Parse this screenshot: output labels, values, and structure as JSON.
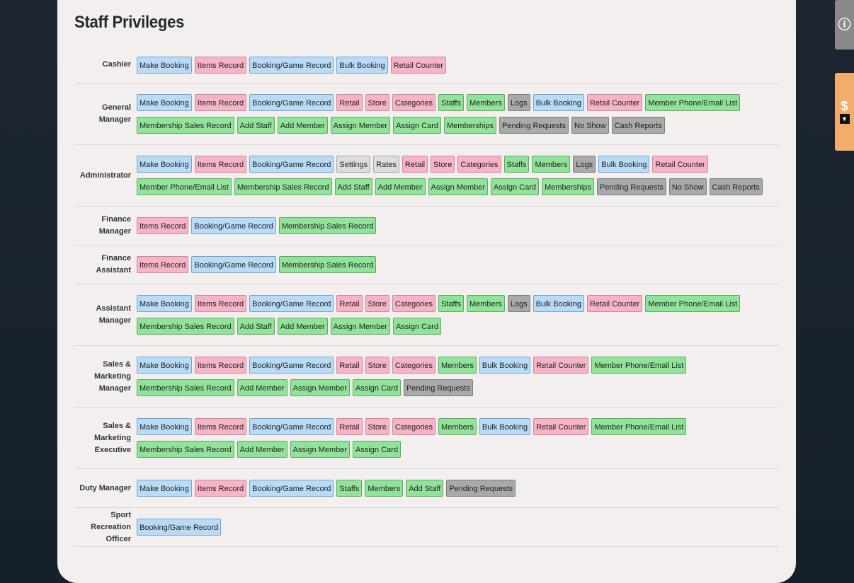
{
  "title": "Staff Privileges",
  "side": {
    "top_icon": "info-icon",
    "money_icon": "dollar-icon",
    "money_glyph": "$",
    "info_glyph": "ⓘ",
    "down_glyph": "▼"
  },
  "rows": [
    {
      "role": "Cashier",
      "perms": [
        {
          "label": "Make Booking",
          "color": "blue"
        },
        {
          "label": "Items Record",
          "color": "pink"
        },
        {
          "label": "Booking/Game Record",
          "color": "blue"
        },
        {
          "label": "Bulk Booking",
          "color": "blue"
        },
        {
          "label": "Retail Counter",
          "color": "pink"
        }
      ]
    },
    {
      "role": "General Manager",
      "perms": [
        {
          "label": "Make Booking",
          "color": "blue"
        },
        {
          "label": "Items Record",
          "color": "pink"
        },
        {
          "label": "Booking/Game Record",
          "color": "blue"
        },
        {
          "label": "Retail",
          "color": "pink"
        },
        {
          "label": "Store",
          "color": "pink"
        },
        {
          "label": "Categories",
          "color": "pink"
        },
        {
          "label": "Staffs",
          "color": "green"
        },
        {
          "label": "Members",
          "color": "green"
        },
        {
          "label": "Logs",
          "color": "gray"
        },
        {
          "label": "Bulk Booking",
          "color": "blue"
        },
        {
          "label": "Retail Counter",
          "color": "pink"
        },
        {
          "label": "Member Phone/Email List",
          "color": "green"
        },
        {
          "label": "Membership Sales Record",
          "color": "green"
        },
        {
          "label": "Add Staff",
          "color": "green"
        },
        {
          "label": "Add Member",
          "color": "green"
        },
        {
          "label": "Assign Member",
          "color": "green"
        },
        {
          "label": "Assign Card",
          "color": "green"
        },
        {
          "label": "Memberships",
          "color": "green"
        },
        {
          "label": "Pending Requests",
          "color": "gray"
        },
        {
          "label": "No Show",
          "color": "gray"
        },
        {
          "label": "Cash Reports",
          "color": "gray"
        }
      ]
    },
    {
      "role": "Administrator",
      "perms": [
        {
          "label": "Make Booking",
          "color": "blue"
        },
        {
          "label": "Items Record",
          "color": "pink"
        },
        {
          "label": "Booking/Game Record",
          "color": "blue"
        },
        {
          "label": "Settings",
          "color": "lgray"
        },
        {
          "label": "Rates",
          "color": "lgray"
        },
        {
          "label": "Retail",
          "color": "pink"
        },
        {
          "label": "Store",
          "color": "pink"
        },
        {
          "label": "Categories",
          "color": "pink"
        },
        {
          "label": "Staffs",
          "color": "green"
        },
        {
          "label": "Members",
          "color": "green"
        },
        {
          "label": "Logs",
          "color": "gray"
        },
        {
          "label": "Bulk Booking",
          "color": "blue"
        },
        {
          "label": "Retail Counter",
          "color": "pink"
        },
        {
          "label": "Member Phone/Email List",
          "color": "green"
        },
        {
          "label": "Membership Sales Record",
          "color": "green"
        },
        {
          "label": "Add Staff",
          "color": "green"
        },
        {
          "label": "Add Member",
          "color": "green"
        },
        {
          "label": "Assign Member",
          "color": "green"
        },
        {
          "label": "Assign Card",
          "color": "green"
        },
        {
          "label": "Memberships",
          "color": "green"
        },
        {
          "label": "Pending Requests",
          "color": "gray"
        },
        {
          "label": "No Show",
          "color": "gray"
        },
        {
          "label": "Cash Reports",
          "color": "gray"
        }
      ]
    },
    {
      "role": "Finance Manager",
      "perms": [
        {
          "label": "Items Record",
          "color": "pink"
        },
        {
          "label": "Booking/Game Record",
          "color": "blue"
        },
        {
          "label": "Membership Sales Record",
          "color": "green"
        }
      ]
    },
    {
      "role": "Finance\nAssistant",
      "perms": [
        {
          "label": "Items Record",
          "color": "pink"
        },
        {
          "label": "Booking/Game Record",
          "color": "blue"
        },
        {
          "label": "Membership Sales Record",
          "color": "green"
        }
      ]
    },
    {
      "role": "Assistant\nManager",
      "perms": [
        {
          "label": "Make Booking",
          "color": "blue"
        },
        {
          "label": "Items Record",
          "color": "pink"
        },
        {
          "label": "Booking/Game Record",
          "color": "blue"
        },
        {
          "label": "Retail",
          "color": "pink"
        },
        {
          "label": "Store",
          "color": "pink"
        },
        {
          "label": "Categories",
          "color": "pink"
        },
        {
          "label": "Staffs",
          "color": "green"
        },
        {
          "label": "Members",
          "color": "green"
        },
        {
          "label": "Logs",
          "color": "gray"
        },
        {
          "label": "Bulk Booking",
          "color": "blue"
        },
        {
          "label": "Retail Counter",
          "color": "pink"
        },
        {
          "label": "Member Phone/Email List",
          "color": "green"
        },
        {
          "label": "Membership Sales Record",
          "color": "green"
        },
        {
          "label": "Add Staff",
          "color": "green"
        },
        {
          "label": "Add Member",
          "color": "green"
        },
        {
          "label": "Assign Member",
          "color": "green"
        },
        {
          "label": "Assign Card",
          "color": "green"
        }
      ]
    },
    {
      "role": "Sales &\nMarketing\nManager",
      "perms": [
        {
          "label": "Make Booking",
          "color": "blue"
        },
        {
          "label": "Items Record",
          "color": "pink"
        },
        {
          "label": "Booking/Game Record",
          "color": "blue"
        },
        {
          "label": "Retail",
          "color": "pink"
        },
        {
          "label": "Store",
          "color": "pink"
        },
        {
          "label": "Categories",
          "color": "pink"
        },
        {
          "label": "Members",
          "color": "green"
        },
        {
          "label": "Bulk Booking",
          "color": "blue"
        },
        {
          "label": "Retail Counter",
          "color": "pink"
        },
        {
          "label": "Member Phone/Email List",
          "color": "green"
        },
        {
          "label": "Membership Sales Record",
          "color": "green"
        },
        {
          "label": "Add Member",
          "color": "green"
        },
        {
          "label": "Assign Member",
          "color": "green"
        },
        {
          "label": "Assign Card",
          "color": "green"
        },
        {
          "label": "Pending Requests",
          "color": "gray"
        }
      ]
    },
    {
      "role": "Sales &\nMarketing\nExecutive",
      "perms": [
        {
          "label": "Make Booking",
          "color": "blue"
        },
        {
          "label": "Items Record",
          "color": "pink"
        },
        {
          "label": "Booking/Game Record",
          "color": "blue"
        },
        {
          "label": "Retail",
          "color": "pink"
        },
        {
          "label": "Store",
          "color": "pink"
        },
        {
          "label": "Categories",
          "color": "pink"
        },
        {
          "label": "Members",
          "color": "green"
        },
        {
          "label": "Bulk Booking",
          "color": "blue"
        },
        {
          "label": "Retail Counter",
          "color": "pink"
        },
        {
          "label": "Member Phone/Email List",
          "color": "green"
        },
        {
          "label": "Membership Sales Record",
          "color": "green"
        },
        {
          "label": "Add Member",
          "color": "green"
        },
        {
          "label": "Assign Member",
          "color": "green"
        },
        {
          "label": "Assign Card",
          "color": "green"
        }
      ]
    },
    {
      "role": "Duty Manager",
      "perms": [
        {
          "label": "Make Booking",
          "color": "blue"
        },
        {
          "label": "Items Record",
          "color": "pink"
        },
        {
          "label": "Booking/Game Record",
          "color": "blue"
        },
        {
          "label": "Staffs",
          "color": "green"
        },
        {
          "label": "Members",
          "color": "green"
        },
        {
          "label": "Add Staff",
          "color": "green"
        },
        {
          "label": "Pending Requests",
          "color": "gray"
        }
      ]
    },
    {
      "role": "Sport Recreation\nOfficer",
      "perms": [
        {
          "label": "Booking/Game Record",
          "color": "blue"
        }
      ]
    }
  ]
}
